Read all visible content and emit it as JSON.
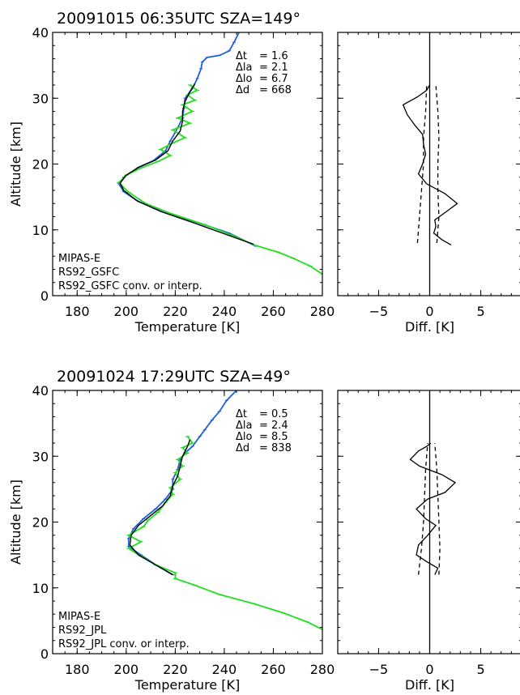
{
  "colors": {
    "mipas": "#1f5fd6",
    "rs92": "#22dd22",
    "conv": "#000000"
  },
  "chart_data": [
    {
      "type": "line",
      "title": "20091015 06:35UTC SZA=149°",
      "xlabel": "Temperature [K]",
      "ylabel": "Altitude [km]",
      "xlim": [
        170,
        280
      ],
      "ylim": [
        0,
        40
      ],
      "xticks": [
        180,
        200,
        220,
        240,
        260,
        280
      ],
      "yticks": [
        0,
        10,
        20,
        30,
        40
      ],
      "stats": [
        "Δt   = 1.6",
        "Δla  = 2.1",
        "Δlo  = 6.7",
        "Δd   = 668"
      ],
      "legend": [
        "MIPAS-E",
        "RS92_GSFC",
        "RS92_GSFC conv. or interp."
      ],
      "series": [
        {
          "name": "MIPAS-E",
          "points": [
            [
              253,
              7.5
            ],
            [
              242,
              9.5
            ],
            [
              230,
              11
            ],
            [
              215,
              12.7
            ],
            [
              205,
              14.3
            ],
            [
              199,
              15.8
            ],
            [
              197,
              17
            ],
            [
              199,
              18
            ],
            [
              205,
              19.5
            ],
            [
              211,
              20.5
            ],
            [
              216,
              22
            ],
            [
              218,
              23.5
            ],
            [
              221,
              25.5
            ],
            [
              223,
              27
            ],
            [
              223.5,
              28.5
            ],
            [
              224,
              30
            ],
            [
              227,
              31.5
            ],
            [
              229,
              33
            ],
            [
              230.5,
              34.5
            ],
            [
              231,
              35.5
            ],
            [
              233,
              36.2
            ],
            [
              238,
              36.5
            ],
            [
              242,
              37.2
            ],
            [
              244,
              38.5
            ],
            [
              246,
              40
            ]
          ]
        },
        {
          "name": "RS92_GSFC",
          "points": [
            [
              281,
              3
            ],
            [
              275,
              4.5
            ],
            [
              268,
              5.7
            ],
            [
              262,
              6.6
            ],
            [
              253,
              7.6
            ],
            [
              243,
              9.2
            ],
            [
              232,
              10.8
            ],
            [
              218,
              12.5
            ],
            [
              208,
              14
            ],
            [
              201,
              15.7
            ],
            [
              197,
              17.2
            ],
            [
              200,
              18.3
            ],
            [
              206,
              19.4
            ],
            [
              213,
              20.4
            ],
            [
              218,
              21.3
            ],
            [
              214,
              22.2
            ],
            [
              219,
              23.2
            ],
            [
              224,
              24
            ],
            [
              219,
              25.2
            ],
            [
              226,
              26.2
            ],
            [
              221,
              27
            ],
            [
              227,
              28
            ],
            [
              223,
              29
            ],
            [
              228,
              29.7
            ],
            [
              225,
              30.5
            ],
            [
              229,
              31.2
            ],
            [
              226,
              32
            ]
          ]
        },
        {
          "name": "RS92_GSFC conv. or interp.",
          "points": [
            [
              252,
              7.8
            ],
            [
              240,
              9.4
            ],
            [
              228,
              11
            ],
            [
              214,
              12.8
            ],
            [
              204,
              14.5
            ],
            [
              199,
              16
            ],
            [
              197.5,
              17.1
            ],
            [
              200,
              18.3
            ],
            [
              205,
              19.5
            ],
            [
              212,
              20.6
            ],
            [
              217,
              22
            ],
            [
              219,
              23.5
            ],
            [
              222,
              25
            ],
            [
              223,
              26.5
            ],
            [
              223,
              28
            ],
            [
              224,
              29.5
            ],
            [
              226,
              31
            ],
            [
              228,
              32.2
            ]
          ]
        }
      ]
    },
    {
      "type": "line",
      "xlabel": "Diff. [K]",
      "xlim": [
        -9,
        9
      ],
      "ylim": [
        0,
        40
      ],
      "xticks": [
        -5,
        0,
        5
      ],
      "yticks": [
        0,
        10,
        20,
        30,
        40
      ],
      "series": [
        {
          "name": "",
          "points": [
            [
              2.1,
              7.7
            ],
            [
              1.2,
              8.5
            ],
            [
              0.4,
              9.5
            ],
            [
              0.6,
              10.5
            ],
            [
              0.5,
              11.5
            ],
            [
              1.4,
              12.5
            ],
            [
              2.7,
              14
            ],
            [
              1.5,
              15.5
            ],
            [
              -0.3,
              17
            ],
            [
              -1.1,
              18.5
            ],
            [
              -0.7,
              20
            ],
            [
              -0.4,
              21.5
            ],
            [
              -0.6,
              23
            ],
            [
              -0.7,
              24.5
            ],
            [
              -1.5,
              26
            ],
            [
              -2.2,
              27.5
            ],
            [
              -2.6,
              29
            ],
            [
              -1.2,
              30.2
            ],
            [
              -0.3,
              31.2
            ],
            [
              0.0,
              32
            ]
          ]
        },
        {
          "name": "",
          "style": "dashed",
          "points": [
            [
              -1.2,
              8
            ],
            [
              -1,
              12
            ],
            [
              -0.8,
              16
            ],
            [
              -0.6,
              20
            ],
            [
              -0.6,
              24
            ],
            [
              -0.4,
              28
            ],
            [
              -0.3,
              32
            ]
          ]
        },
        {
          "name": "",
          "style": "dashed",
          "points": [
            [
              0.7,
              8
            ],
            [
              0.9,
              12
            ],
            [
              0.8,
              16
            ],
            [
              0.8,
              20
            ],
            [
              0.9,
              24
            ],
            [
              0.8,
              28
            ],
            [
              0.6,
              32
            ]
          ]
        }
      ]
    },
    {
      "type": "line",
      "title": "20091024 17:29UTC SZA=49°",
      "xlabel": "Temperature [K]",
      "ylabel": "Altitude [km]",
      "xlim": [
        170,
        280
      ],
      "ylim": [
        0,
        40
      ],
      "xticks": [
        180,
        200,
        220,
        240,
        260,
        280
      ],
      "yticks": [
        0,
        10,
        20,
        30,
        40
      ],
      "stats": [
        "Δt   = 0.5",
        "Δla  = 2.4",
        "Δlo  = 8.5",
        "Δd   = 838"
      ],
      "legend": [
        "MIPAS-E",
        "RS92_JPL",
        "RS92_JPL conv. or interp."
      ],
      "series": [
        {
          "name": "MIPAS-E",
          "points": [
            [
              219,
              12
            ],
            [
              212,
              13.5
            ],
            [
              206,
              15
            ],
            [
              201,
              16.3
            ],
            [
              201,
              17.5
            ],
            [
              203,
              19
            ],
            [
              207,
              20.5
            ],
            [
              212,
              22
            ],
            [
              216,
              23.5
            ],
            [
              219,
              25
            ],
            [
              219,
              26.5
            ],
            [
              221,
              28
            ],
            [
              222,
              29.5
            ],
            [
              224,
              30.5
            ],
            [
              227,
              31.5
            ],
            [
              230,
              33
            ],
            [
              232,
              34
            ],
            [
              235,
              35.5
            ],
            [
              238,
              36.8
            ],
            [
              241,
              38.5
            ],
            [
              245,
              40
            ]
          ]
        },
        {
          "name": "RS92_JPL",
          "points": [
            [
              281,
              3.5
            ],
            [
              274,
              4.8
            ],
            [
              264,
              6.2
            ],
            [
              252,
              7.6
            ],
            [
              238,
              9
            ],
            [
              228,
              10.4
            ],
            [
              220,
              11.4
            ],
            [
              220,
              12.3
            ],
            [
              212,
              13.5
            ],
            [
              206,
              14.8
            ],
            [
              201,
              16
            ],
            [
              206,
              17
            ],
            [
              201,
              18
            ],
            [
              207,
              19.3
            ],
            [
              209,
              20.3
            ],
            [
              213,
              21.5
            ],
            [
              216,
              23
            ],
            [
              219,
              24.2
            ],
            [
              218,
              25.2
            ],
            [
              222,
              26.5
            ],
            [
              220,
              27.5
            ],
            [
              223,
              28.5
            ],
            [
              221,
              29.5
            ],
            [
              225,
              30.5
            ],
            [
              223,
              31.3
            ],
            [
              227,
              32
            ],
            [
              225,
              33
            ]
          ]
        },
        {
          "name": "RS92_JPL conv. or interp.",
          "points": [
            [
              219,
              12
            ],
            [
              212,
              13.5
            ],
            [
              205,
              15
            ],
            [
              201.5,
              16.5
            ],
            [
              202,
              18
            ],
            [
              205,
              19.5
            ],
            [
              210,
              21
            ],
            [
              215,
              22.5
            ],
            [
              218,
              24
            ],
            [
              219,
              25.5
            ],
            [
              221,
              27
            ],
            [
              222,
              28.5
            ],
            [
              223,
              30
            ],
            [
              225,
              31.5
            ],
            [
              226,
              32.5
            ]
          ]
        }
      ]
    },
    {
      "type": "line",
      "xlabel": "Diff. [K]",
      "xlim": [
        -9,
        9
      ],
      "ylim": [
        0,
        40
      ],
      "xticks": [
        -5,
        0,
        5
      ],
      "yticks": [
        0,
        10,
        20,
        30,
        40
      ],
      "series": [
        {
          "name": "",
          "points": [
            [
              0.5,
              12
            ],
            [
              0.8,
              13
            ],
            [
              -0.3,
              14
            ],
            [
              -1.3,
              15
            ],
            [
              -1.1,
              16.5
            ],
            [
              -0.2,
              18
            ],
            [
              0.6,
              19.5
            ],
            [
              -0.4,
              20.5
            ],
            [
              -1.3,
              22
            ],
            [
              -0.2,
              23.5
            ],
            [
              1.5,
              24.5
            ],
            [
              2.5,
              26
            ],
            [
              1.2,
              27.2
            ],
            [
              -1,
              28.5
            ],
            [
              -1.9,
              29.5
            ],
            [
              -1.1,
              30.8
            ],
            [
              -0.3,
              31.5
            ],
            [
              0.1,
              32
            ]
          ]
        },
        {
          "name": "",
          "style": "dashed",
          "points": [
            [
              -1.1,
              12
            ],
            [
              -0.8,
              16
            ],
            [
              -0.6,
              20
            ],
            [
              -0.5,
              24
            ],
            [
              -0.4,
              28
            ],
            [
              -0.2,
              32
            ]
          ]
        },
        {
          "name": "",
          "style": "dashed",
          "points": [
            [
              0.9,
              12
            ],
            [
              1.0,
              16
            ],
            [
              0.9,
              20
            ],
            [
              0.8,
              24
            ],
            [
              0.7,
              28
            ],
            [
              0.5,
              32
            ]
          ]
        }
      ]
    }
  ]
}
